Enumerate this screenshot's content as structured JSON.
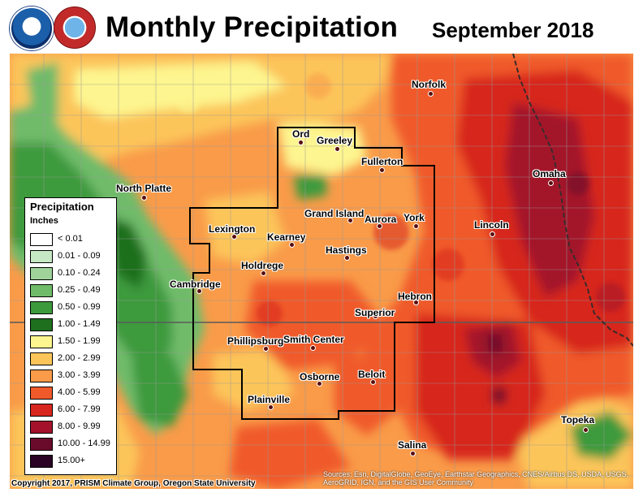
{
  "header": {
    "title": "Monthly Precipitation",
    "period": "September 2018",
    "logos": [
      "noaa-logo",
      "national-weather-service-logo"
    ]
  },
  "legend": {
    "title": "Precipitation",
    "units": "Inches",
    "classes": [
      {
        "label": "< 0.01",
        "color": "#ffffff"
      },
      {
        "label": "0.01 - 0.09",
        "color": "#c6e8c4"
      },
      {
        "label": "0.10 - 0.24",
        "color": "#9fd39a"
      },
      {
        "label": "0.25 - 0.49",
        "color": "#70bb6a"
      },
      {
        "label": "0.50 - 0.99",
        "color": "#3c9a3c"
      },
      {
        "label": "1.00 - 1.49",
        "color": "#1e6f1e"
      },
      {
        "label": "1.50 - 1.99",
        "color": "#fdf58f"
      },
      {
        "label": "2.00 - 2.99",
        "color": "#fcc55a"
      },
      {
        "label": "3.00 - 3.99",
        "color": "#f99b49"
      },
      {
        "label": "4.00 - 5.99",
        "color": "#f05a2b"
      },
      {
        "label": "6.00 - 7.99",
        "color": "#d7261e"
      },
      {
        "label": "8.00 - 9.99",
        "color": "#a3122b"
      },
      {
        "label": "10.00 - 14.99",
        "color": "#6a0b2b"
      },
      {
        "label": "15.00+",
        "color": "#2b0324"
      }
    ]
  },
  "cities": [
    {
      "name": "Norfolk"
    },
    {
      "name": "Ord"
    },
    {
      "name": "Greeley"
    },
    {
      "name": "Fullerton"
    },
    {
      "name": "North Platte"
    },
    {
      "name": "Omaha"
    },
    {
      "name": "Grand Island"
    },
    {
      "name": "Aurora"
    },
    {
      "name": "York"
    },
    {
      "name": "Lincoln"
    },
    {
      "name": "Lexington"
    },
    {
      "name": "Kearney"
    },
    {
      "name": "Hastings"
    },
    {
      "name": "Holdrege"
    },
    {
      "name": "Cambridge"
    },
    {
      "name": "Hebron"
    },
    {
      "name": "Superior"
    },
    {
      "name": "Phillipsburg"
    },
    {
      "name": "Smith Center"
    },
    {
      "name": "Osborne"
    },
    {
      "name": "Beloit"
    },
    {
      "name": "Plainville"
    },
    {
      "name": "Topeka"
    },
    {
      "name": "Salina"
    }
  ],
  "footer": {
    "copyright": "Copyright 2017, PRISM Climate Group, Oregon State University",
    "sources": "Sources: Esri, DigitalGlobe, GeoEye, Earthstar Geographics, CNES/Airbus DS, USDA, USGS, AeroGRID, IGN, and the GIS User Community"
  }
}
